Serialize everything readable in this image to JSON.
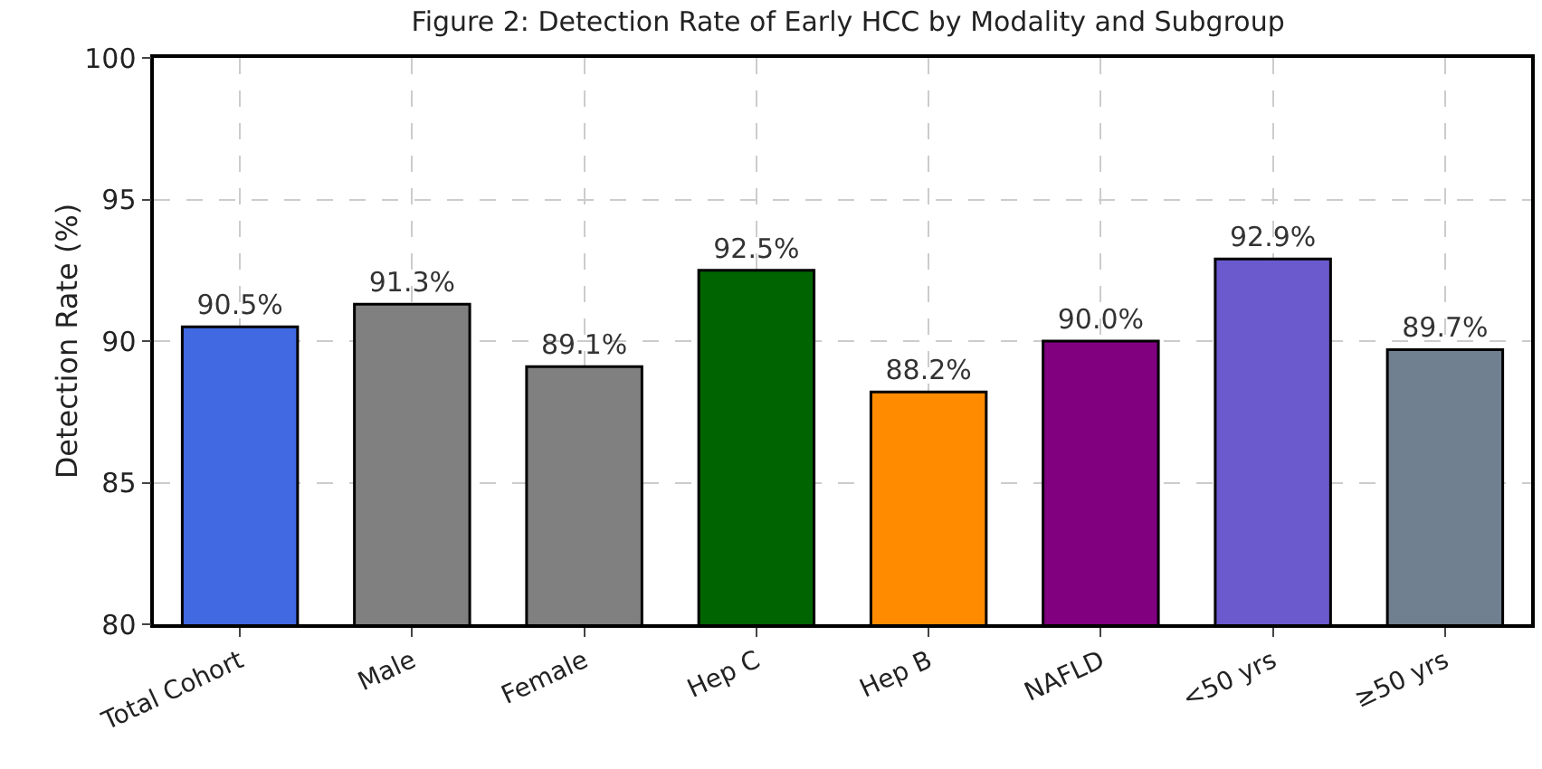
{
  "chart_data": {
    "type": "bar",
    "title": "Figure 2: Detection Rate of Early HCC by Modality and Subgroup",
    "ylabel": "Detection Rate (%)",
    "categories": [
      "Total Cohort",
      "Male",
      "Female",
      "Hep C",
      "Hep B",
      "NAFLD",
      "<50 yrs",
      "≥50 yrs"
    ],
    "values": [
      90.5,
      91.3,
      89.1,
      92.5,
      88.2,
      90.0,
      92.9,
      89.7
    ],
    "colors": [
      "#4169e1",
      "#808080",
      "#808080",
      "#006400",
      "#ff8c00",
      "#800080",
      "#6a5acd",
      "#708090"
    ],
    "value_labels": [
      "90.5%",
      "91.3%",
      "89.1%",
      "92.5%",
      "88.2%",
      "90.0%",
      "92.9%",
      "89.7%"
    ],
    "ylim": [
      80,
      100
    ],
    "yticks": [
      80,
      85,
      90,
      95,
      100
    ],
    "grid": true
  }
}
